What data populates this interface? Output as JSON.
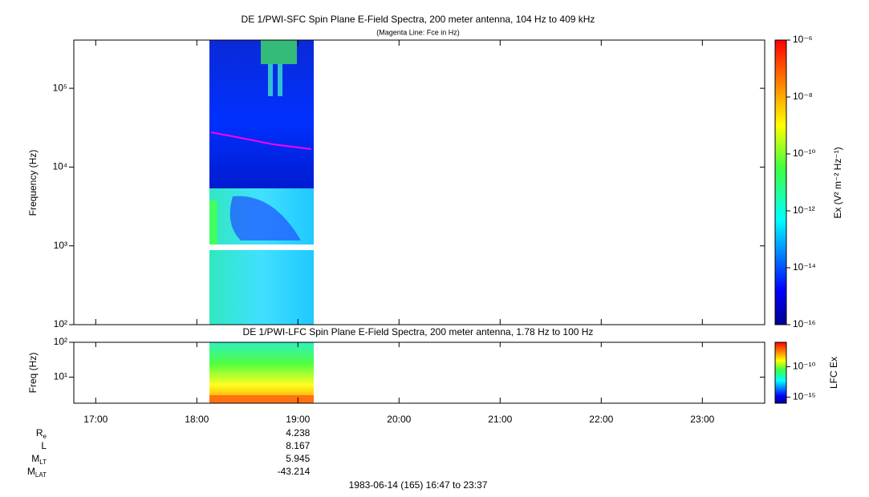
{
  "top_panel": {
    "title": "DE 1/PWI-SFC  Spin Plane E-Field Spectra, 200 meter antenna, 104 Hz to 409 kHz",
    "subtitle": "(Magenta Line: Fce in Hz)",
    "ylabel": "Frequency (Hz)",
    "ylim": [
      100,
      409000
    ],
    "log": true,
    "yticks": [
      {
        "value": 100,
        "label": "10²"
      },
      {
        "value": 1000,
        "label": "10³"
      },
      {
        "value": 10000,
        "label": "10⁴"
      },
      {
        "value": 100000,
        "label": "10⁵"
      }
    ],
    "colorbar": {
      "label": "Ex (V² m⁻² Hz⁻¹)",
      "lim": [
        1e-16,
        1e-06
      ],
      "ticks": [
        {
          "value": 1e-06,
          "label": "10⁻⁶"
        },
        {
          "value": 1e-08,
          "label": "10⁻⁸"
        },
        {
          "value": 1e-10,
          "label": "10⁻¹⁰"
        },
        {
          "value": 1e-12,
          "label": "10⁻¹²"
        },
        {
          "value": 1e-14,
          "label": "10⁻¹⁴"
        },
        {
          "value": 1e-16,
          "label": "10⁻¹⁶"
        }
      ]
    }
  },
  "bottom_panel": {
    "title": "DE 1/PWI-LFC  Spin Plane E-Field Spectra, 200 meter antenna, 1.78 Hz to 100 Hz",
    "ylabel": "Freq (Hz)",
    "ylim": [
      1.78,
      100
    ],
    "log": true,
    "yticks": [
      {
        "value": 10,
        "label": "10¹"
      },
      {
        "value": 100,
        "label": "10²"
      }
    ],
    "colorbar": {
      "label": "LFC Ex",
      "lim": [
        1e-16,
        1e-06
      ],
      "ticks": [
        {
          "value": 1e-10,
          "label": "10⁻¹⁰"
        },
        {
          "value": 1e-15,
          "label": "10⁻¹⁵"
        }
      ]
    }
  },
  "xaxis": {
    "xlim": [
      "16:47",
      "23:37"
    ],
    "xticks": [
      "17:00",
      "18:00",
      "19:00",
      "20:00",
      "21:00",
      "22:00",
      "23:00"
    ]
  },
  "ephemeris": {
    "time": "19:00",
    "rows": [
      {
        "label": "R",
        "sub": "e",
        "value": "4.238"
      },
      {
        "label": "L",
        "sub": "",
        "value": "8.167"
      },
      {
        "label": "M",
        "sub": "LT",
        "value": "5.945"
      },
      {
        "label": "M",
        "sub": "LAT",
        "value": "-43.214"
      }
    ]
  },
  "footer": "1983-06-14 (165) 16:47 to 23:37"
}
